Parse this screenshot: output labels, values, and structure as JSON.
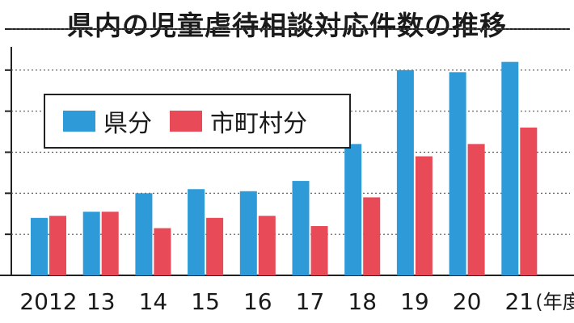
{
  "chart_data": {
    "type": "bar",
    "title": "県内の児童虐待相談対応件数の推移",
    "xlabel": "",
    "ylabel": "",
    "x_unit": "(年度)",
    "categories": [
      "2012",
      "13",
      "14",
      "15",
      "16",
      "17",
      "18",
      "19",
      "20",
      "21"
    ],
    "series": [
      {
        "name": "県分",
        "color": "#2e9bd8",
        "values": [
          14,
          15.5,
          20,
          21,
          20.5,
          23,
          32,
          50,
          49.5,
          52
        ]
      },
      {
        "name": "市町村分",
        "color": "#e84a57",
        "values": [
          14.5,
          15.5,
          11.5,
          14,
          14.5,
          12,
          19,
          29,
          32,
          36
        ]
      }
    ],
    "ylim": [
      0,
      60
    ],
    "grid": true,
    "legend": "top-left"
  }
}
